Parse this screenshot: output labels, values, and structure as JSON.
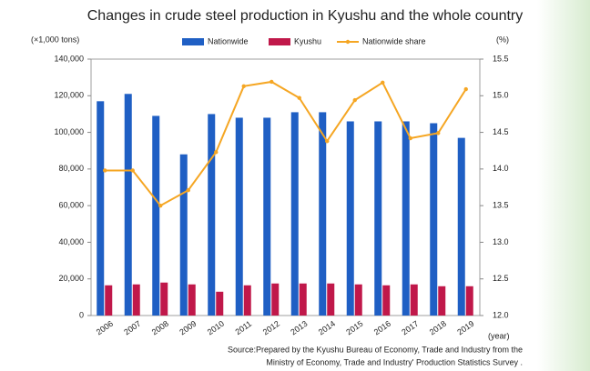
{
  "chart_data": {
    "type": "bar",
    "title": "Changes in crude steel production in Kyushu and the whole country",
    "y_unit": "(×1,000 tons)",
    "y2_unit": "(%)",
    "x_unit": "(year)",
    "source": [
      "Source:Prepared by the Kyushu Bureau of Economy, Trade and Industry from the",
      "Ministry of Economy, Trade and Industry' Production Statistics Survey ."
    ],
    "categories": [
      "2006",
      "2007",
      "2008",
      "2009",
      "2010",
      "2011",
      "2012",
      "2013",
      "2014",
      "2015",
      "2016",
      "2017",
      "2018",
      "2019"
    ],
    "series": [
      {
        "name": "Nationwide",
        "color": "#1f5fc4",
        "values": [
          117000,
          121000,
          109000,
          88000,
          110000,
          108000,
          108000,
          111000,
          111000,
          106000,
          106000,
          106000,
          105000,
          97000
        ]
      },
      {
        "name": "Kyushu",
        "color": "#c0184a",
        "values": [
          16500,
          17000,
          18000,
          17000,
          13000,
          16500,
          17500,
          17500,
          17500,
          17000,
          16500,
          17000,
          16000,
          16000
        ]
      },
      {
        "name": "Nationwide share",
        "color": "#f5a623",
        "axis": "y2",
        "type": "line",
        "values": [
          13.98,
          13.98,
          13.5,
          13.71,
          14.23,
          15.13,
          15.19,
          14.97,
          14.38,
          14.94,
          15.18,
          14.42,
          14.49,
          15.09
        ]
      }
    ],
    "ylim": [
      0,
      140000
    ],
    "yticks": [
      0,
      {
        "value": 20000,
        "label": "20,000"
      },
      {
        "value": 40000,
        "label": "40,000"
      },
      {
        "value": 60000,
        "label": "60,000"
      },
      {
        "value": 80000,
        "label": "80,000"
      },
      {
        "value": 100000,
        "label": "100,000"
      },
      {
        "value": 120000,
        "label": "120,000"
      },
      {
        "value": 140000,
        "label": "140,000"
      }
    ],
    "y2lim": [
      12,
      15.5
    ],
    "y2ticks": [
      {
        "value": 12,
        "label": "12.0"
      },
      12.5,
      {
        "value": 13,
        "label": "13.0"
      },
      13.5,
      {
        "value": 14,
        "label": "14.0"
      },
      14.5,
      {
        "value": 15,
        "label": "15.0"
      },
      15.5
    ],
    "legend": "top"
  }
}
